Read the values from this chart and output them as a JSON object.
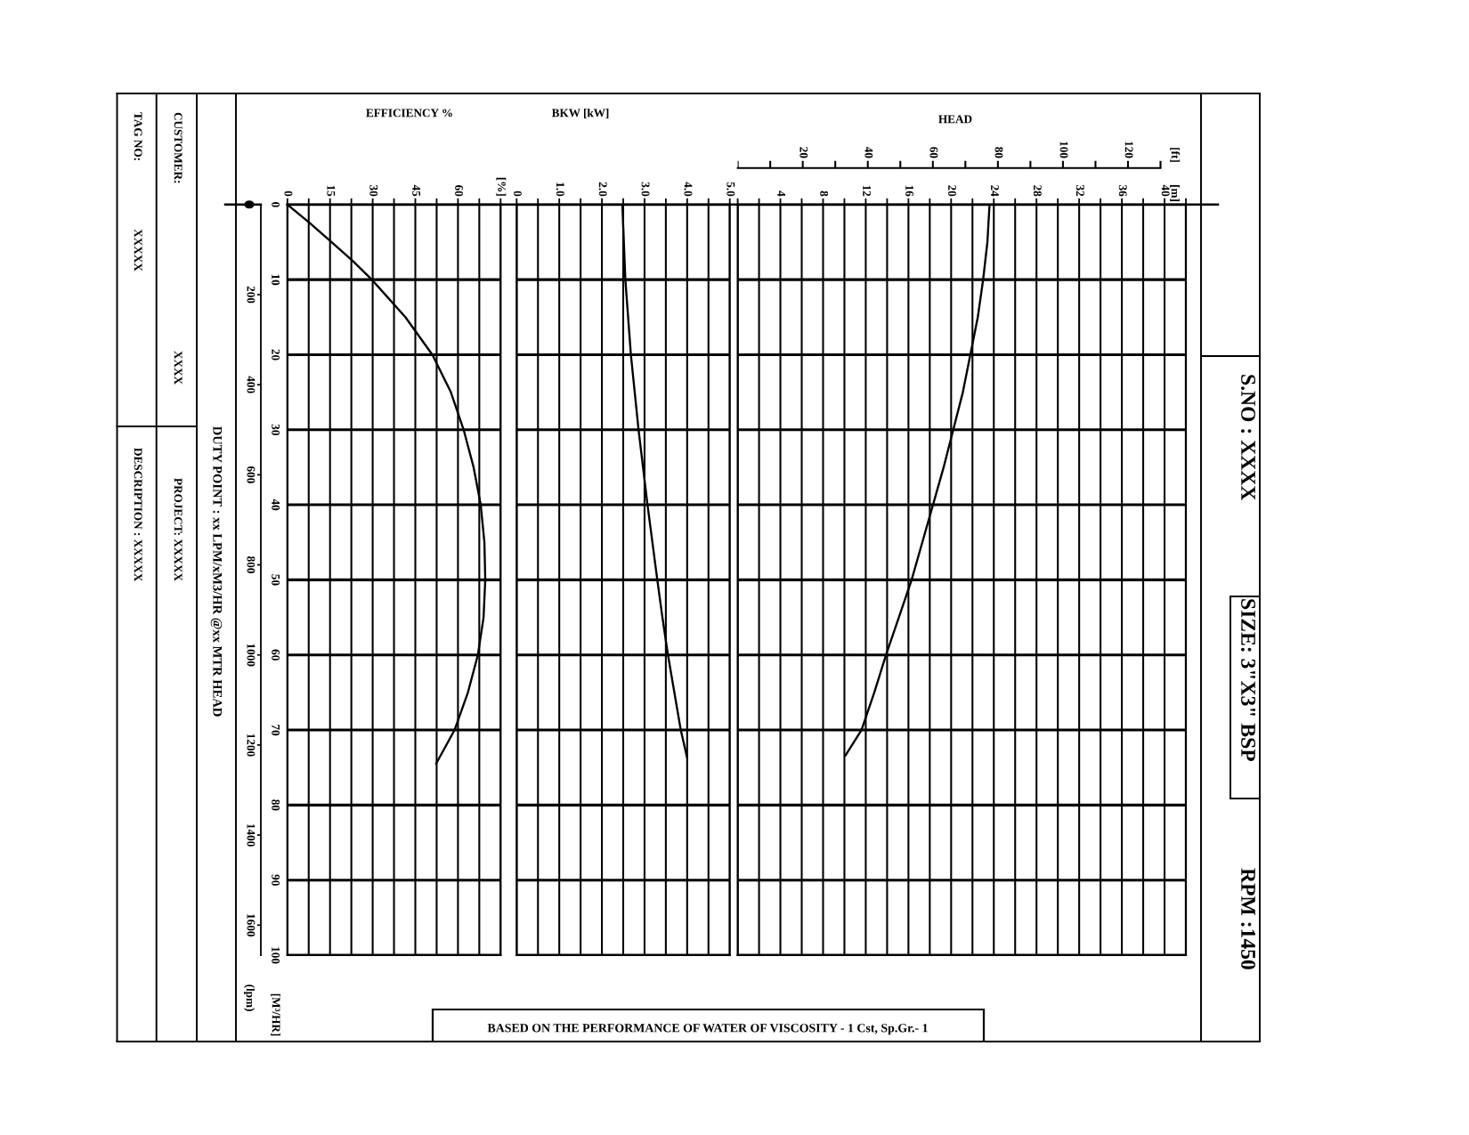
{
  "chart_data": [
    {
      "type": "line",
      "title": "EFFICIENCY %",
      "ylabel": "[M³/HR]",
      "y2label": "(lpm)",
      "xlim": [
        0,
        75
      ],
      "xticks": [
        0,
        {
          "value": 7.5,
          "label": null
        },
        15,
        {
          "value": 22.5,
          "label": null
        },
        30,
        {
          "value": 37.5,
          "label": null
        },
        45,
        {
          "value": 52.5,
          "label": null
        },
        60,
        {
          "value": 67.5,
          "label": null
        },
        {
          "value": 75,
          "label": "[%]"
        }
      ],
      "ylim": [
        100,
        0
      ],
      "yticks": [
        0,
        10,
        20,
        30,
        40,
        50,
        60,
        70,
        80,
        90,
        100
      ],
      "y2lim": [
        1666.7,
        0
      ],
      "y2ticks": [
        200,
        400,
        600,
        800,
        1000,
        1200,
        1400,
        1600
      ],
      "grid": true,
      "series": [
        {
          "color": "#000000",
          "x": [
            0,
            8,
            15.5,
            23,
            29.7,
            41.5,
            51,
            57.5,
            62,
            65.5,
            68,
            69.3,
            69.6,
            69,
            67,
            63.5,
            58.8,
            52.3
          ],
          "values": [
            0,
            2.5,
            5,
            7.5,
            10,
            15,
            20,
            25,
            30,
            35,
            40,
            45,
            50,
            55,
            60,
            65,
            70,
            74.5
          ]
        }
      ],
      "annotations": [
        "TAG NO:",
        "XXXXX",
        "DESCRIPTION : XXXXX",
        "CUSTOMER:",
        "XXXX",
        "PROJECT: XXXXX",
        "DUTY POINT : xx LPM/xM3/HR @xx MTR HEAD",
        "S.NO : XXXX",
        "SIZE: 3\"X3\" BSP",
        "RPM :1450",
        "BASED ON THE PERFORMANCE OF WATER OF VISCOSITY - 1 Cst, Sp.Gr.- 1"
      ]
    },
    {
      "type": "line",
      "title": "BKW [kW]",
      "tick_labels": "x",
      "xlim": [
        0,
        5
      ],
      "xticks": [
        0,
        {
          "value": 0.5,
          "label": null
        },
        {
          "value": 1,
          "label": "1.0"
        },
        {
          "value": 1.5,
          "label": null
        },
        {
          "value": 2,
          "label": "2.0"
        },
        {
          "value": 2.5,
          "label": null
        },
        {
          "value": 3,
          "label": "3.0"
        },
        {
          "value": 3.5,
          "label": null
        },
        {
          "value": 4,
          "label": "4.0"
        },
        {
          "value": 4.5,
          "label": null
        },
        {
          "value": 5,
          "label": "5.0"
        }
      ],
      "ylim": [
        100,
        0
      ],
      "yticks": [
        0,
        10,
        20,
        30,
        40,
        50,
        60,
        70,
        80,
        90,
        100
      ],
      "grid": true,
      "series": [
        {
          "color": "#000000",
          "x": [
            2.48,
            2.55,
            2.68,
            2.86,
            3.07,
            3.3,
            3.42,
            3.55,
            3.85,
            4.0
          ],
          "values": [
            0,
            10,
            20,
            30,
            40,
            50,
            55,
            60,
            70,
            73.7
          ]
        }
      ]
    },
    {
      "type": "line",
      "title": "HEAD",
      "x2label": "[ft]",
      "tick_labels": "x",
      "xlim": [
        0,
        42
      ],
      "xticks": [
        {
          "value": 0,
          "label": null
        },
        {
          "value": 2,
          "label": null
        },
        4,
        {
          "value": 6,
          "label": null
        },
        8,
        {
          "value": 10,
          "label": null
        },
        12,
        {
          "value": 14,
          "label": null
        },
        16,
        {
          "value": 18,
          "label": null
        },
        20,
        {
          "value": 22,
          "label": null
        },
        24,
        {
          "value": 26,
          "label": null
        },
        28,
        {
          "value": 30,
          "label": null
        },
        32,
        {
          "value": 34,
          "label": null
        },
        36,
        {
          "value": 38,
          "label": null
        },
        40,
        {
          "value": 42,
          "label": null
        }
      ],
      "x2lim": [
        0,
        137.8
      ],
      "x2ticks": [
        20,
        40,
        60,
        80,
        100,
        120
      ],
      "ylim": [
        100,
        0
      ],
      "yticks": [
        0,
        10,
        20,
        30,
        40,
        50,
        60,
        70,
        80,
        90,
        100
      ],
      "grid": true,
      "series": [
        {
          "color": "#000000",
          "x": [
            23.6,
            23.4,
            23,
            22.5,
            21.8,
            21.1,
            20.2,
            19.3,
            18.3,
            17.3,
            16.3,
            15.1,
            13.9,
            12.8,
            11.6,
            10.1
          ],
          "values": [
            0,
            5,
            10,
            15,
            20,
            25,
            30,
            35,
            40,
            45,
            50,
            55,
            60,
            65,
            70,
            73.4
          ]
        }
      ],
      "annotations": [
        "[m]"
      ]
    }
  ]
}
